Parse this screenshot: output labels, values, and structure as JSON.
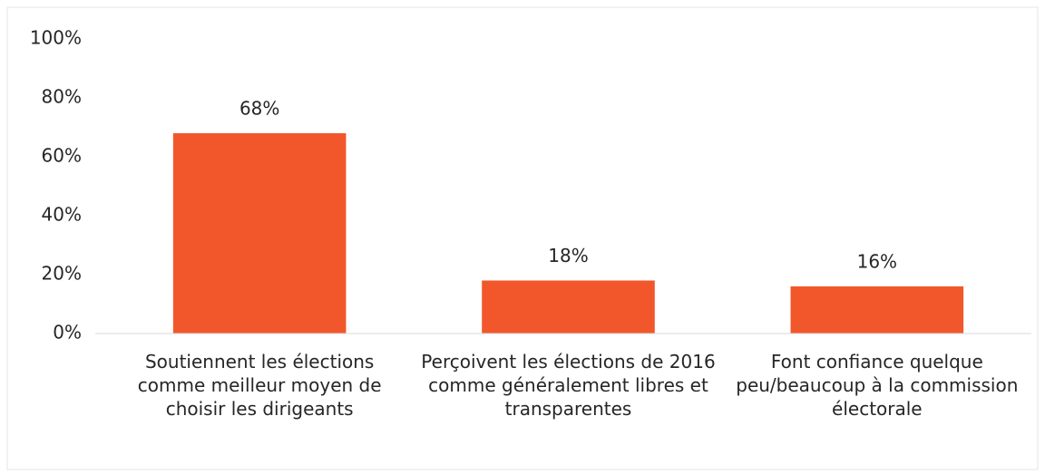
{
  "chart_data": {
    "type": "bar",
    "categories": [
      "Soutiennent les élections comme meilleur moyen de choisir les dirigeants",
      "Perçoivent les élections de 2016 comme généralement libres et transparentes",
      "Font confiance quelque peu/beaucoup à la commission électorale"
    ],
    "values": [
      68,
      18,
      16
    ],
    "value_labels": [
      "68%",
      "18%",
      "16%"
    ],
    "color": "#f2572b",
    "ylim": [
      0,
      100
    ],
    "yticks": [
      {
        "value": 0,
        "label": "0%"
      },
      {
        "value": 20,
        "label": "20%"
      },
      {
        "value": 40,
        "label": "40%"
      },
      {
        "value": 60,
        "label": "60%"
      },
      {
        "value": 80,
        "label": "80%"
      },
      {
        "value": 100,
        "label": "100%"
      }
    ],
    "grid": false
  }
}
